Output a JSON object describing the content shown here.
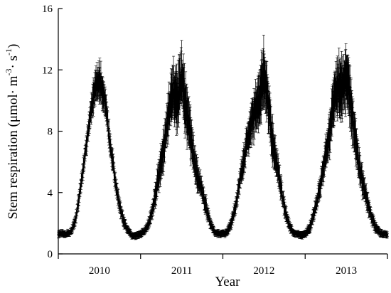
{
  "chart_data": {
    "type": "scatter",
    "title": "",
    "xlabel": "Year",
    "ylabel": "Stem respiration (μmol· m⁻³· s⁻¹)",
    "ylabel_parts": {
      "main": "Stem respiration (μmol· m",
      "sup1": "-3",
      "mid": "· s",
      "sup2": "-1",
      "end": ")"
    },
    "xlim": [
      0,
      4
    ],
    "ylim": [
      0,
      16
    ],
    "yticks": [
      0,
      4,
      8,
      12,
      16
    ],
    "ytick_labels": [
      "0",
      "4",
      "8",
      "12",
      "16"
    ],
    "xtick_positions": [
      0,
      1,
      2,
      3,
      4
    ],
    "year_labels": [
      {
        "pos": 0.5,
        "text": "2010"
      },
      {
        "pos": 1.5,
        "text": "2011"
      },
      {
        "pos": 2.5,
        "text": "2012"
      },
      {
        "pos": 3.5,
        "text": "2013"
      }
    ],
    "grid": false,
    "legend": "none",
    "error_bars": true,
    "series": [
      {
        "x": [
          0.0,
          0.05,
          0.1,
          0.15,
          0.2,
          0.25,
          0.3,
          0.35,
          0.4,
          0.45,
          0.5,
          0.55,
          0.6,
          0.65,
          0.7,
          0.75,
          0.8,
          0.85,
          0.9,
          0.95,
          1.0,
          1.05,
          1.1,
          1.15,
          1.2,
          1.25,
          1.3,
          1.35,
          1.4,
          1.45,
          1.5,
          1.55,
          1.6,
          1.65,
          1.7,
          1.75,
          1.8,
          1.85,
          1.9,
          1.95,
          2.0,
          2.05,
          2.1,
          2.15,
          2.2,
          2.25,
          2.3,
          2.35,
          2.4,
          2.45,
          2.5,
          2.55,
          2.6,
          2.65,
          2.7,
          2.75,
          2.8,
          2.85,
          2.9,
          2.95,
          3.0,
          3.05,
          3.1,
          3.15,
          3.2,
          3.25,
          3.3,
          3.35,
          3.4,
          3.45,
          3.5,
          3.55,
          3.6,
          3.65,
          3.7,
          3.75,
          3.8,
          3.85,
          3.9,
          3.95,
          4.0
        ],
        "y": [
          1.3,
          1.3,
          1.3,
          1.4,
          2.0,
          3.5,
          5.5,
          7.5,
          9.5,
          10.8,
          11.3,
          10.5,
          8.5,
          6.5,
          4.5,
          3.0,
          2.0,
          1.5,
          1.2,
          1.2,
          1.3,
          1.5,
          2.0,
          3.0,
          4.5,
          6.0,
          7.5,
          9.5,
          10.5,
          10.0,
          11.5,
          9.5,
          8.0,
          6.0,
          5.0,
          4.0,
          3.0,
          2.0,
          1.4,
          1.3,
          1.3,
          1.4,
          2.0,
          3.0,
          4.5,
          6.0,
          7.5,
          8.5,
          9.5,
          10.0,
          11.8,
          10.0,
          7.5,
          6.0,
          4.5,
          3.0,
          2.0,
          1.4,
          1.3,
          1.2,
          1.3,
          1.6,
          2.5,
          3.5,
          5.0,
          6.5,
          8.0,
          10.0,
          11.0,
          10.8,
          11.5,
          10.0,
          8.0,
          6.0,
          4.5,
          3.5,
          2.5,
          1.8,
          1.4,
          1.3,
          1.3
        ],
        "err": [
          0.2,
          0.2,
          0.2,
          0.2,
          0.3,
          0.4,
          0.5,
          0.6,
          0.8,
          1.0,
          1.1,
          1.0,
          0.8,
          0.6,
          0.5,
          0.4,
          0.3,
          0.2,
          0.2,
          0.2,
          0.2,
          0.2,
          0.3,
          0.5,
          0.8,
          1.0,
          1.2,
          1.5,
          1.6,
          1.6,
          1.8,
          1.6,
          1.4,
          1.0,
          0.8,
          0.6,
          0.5,
          0.3,
          0.2,
          0.2,
          0.2,
          0.2,
          0.3,
          0.4,
          0.6,
          0.8,
          1.0,
          1.2,
          1.4,
          1.6,
          1.8,
          1.5,
          1.2,
          0.9,
          0.7,
          0.5,
          0.3,
          0.2,
          0.2,
          0.2,
          0.2,
          0.3,
          0.4,
          0.5,
          0.7,
          0.9,
          1.2,
          1.5,
          1.7,
          1.8,
          1.8,
          1.6,
          1.3,
          1.0,
          0.8,
          0.6,
          0.4,
          0.3,
          0.2,
          0.2,
          0.2
        ]
      }
    ]
  }
}
